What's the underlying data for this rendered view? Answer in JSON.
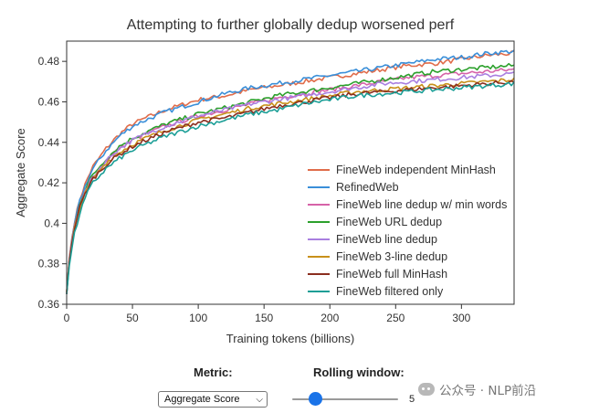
{
  "chart_data": {
    "type": "line",
    "title": "Attempting to further globally dedup worsened perf",
    "xlabel": "Training tokens (billions)",
    "ylabel": "Aggregate Score",
    "xlim": [
      0,
      340
    ],
    "ylim": [
      0.36,
      0.49
    ],
    "xticks": [
      "0",
      "50",
      "100",
      "150",
      "200",
      "250",
      "300"
    ],
    "yticks": [
      "0.36",
      "0.38",
      "0.4",
      "0.42",
      "0.44",
      "0.46",
      "0.48"
    ],
    "grid": false,
    "legend_position": "bottom-right",
    "x": [
      0,
      2,
      5,
      10,
      15,
      20,
      30,
      40,
      50,
      60,
      75,
      90,
      100,
      120,
      140,
      160,
      180,
      200,
      220,
      240,
      260,
      280,
      300,
      320,
      340
    ],
    "series": [
      {
        "name": "FineWeb independent MinHash",
        "color": "#e06c4a",
        "values": [
          0.366,
          0.383,
          0.398,
          0.412,
          0.421,
          0.428,
          0.437,
          0.444,
          0.449,
          0.452,
          0.456,
          0.459,
          0.461,
          0.463,
          0.466,
          0.468,
          0.47,
          0.472,
          0.474,
          0.476,
          0.478,
          0.479,
          0.481,
          0.483,
          0.484
        ]
      },
      {
        "name": "RefinedWeb",
        "color": "#3a8fd9",
        "values": [
          0.365,
          0.382,
          0.397,
          0.411,
          0.42,
          0.427,
          0.436,
          0.443,
          0.448,
          0.451,
          0.455,
          0.458,
          0.46,
          0.464,
          0.467,
          0.469,
          0.471,
          0.473,
          0.475,
          0.477,
          0.479,
          0.481,
          0.482,
          0.484,
          0.485
        ]
      },
      {
        "name": "FineWeb line dedup w/ min words",
        "color": "#d662a8",
        "values": [
          0.366,
          0.382,
          0.396,
          0.409,
          0.417,
          0.423,
          0.431,
          0.437,
          0.441,
          0.444,
          0.448,
          0.451,
          0.453,
          0.456,
          0.459,
          0.462,
          0.464,
          0.466,
          0.468,
          0.47,
          0.472,
          0.473,
          0.474,
          0.475,
          0.476
        ]
      },
      {
        "name": "FineWeb URL dedup",
        "color": "#2ca02c",
        "values": [
          0.366,
          0.382,
          0.396,
          0.41,
          0.418,
          0.424,
          0.432,
          0.438,
          0.442,
          0.445,
          0.449,
          0.452,
          0.454,
          0.457,
          0.46,
          0.463,
          0.465,
          0.467,
          0.469,
          0.471,
          0.473,
          0.475,
          0.476,
          0.477,
          0.478
        ]
      },
      {
        "name": "FineWeb line dedup",
        "color": "#a97fe0",
        "values": [
          0.366,
          0.382,
          0.396,
          0.409,
          0.417,
          0.423,
          0.431,
          0.437,
          0.441,
          0.444,
          0.448,
          0.451,
          0.453,
          0.456,
          0.459,
          0.461,
          0.463,
          0.465,
          0.467,
          0.469,
          0.47,
          0.471,
          0.472,
          0.473,
          0.474
        ]
      },
      {
        "name": "FineWeb 3-line dedup",
        "color": "#c8901a",
        "values": [
          0.366,
          0.381,
          0.395,
          0.408,
          0.416,
          0.422,
          0.43,
          0.435,
          0.439,
          0.442,
          0.446,
          0.449,
          0.451,
          0.454,
          0.457,
          0.459,
          0.461,
          0.463,
          0.465,
          0.466,
          0.467,
          0.468,
          0.469,
          0.47,
          0.471
        ]
      },
      {
        "name": "FineWeb full MinHash",
        "color": "#8b2e1f",
        "values": [
          0.365,
          0.381,
          0.395,
          0.408,
          0.416,
          0.422,
          0.429,
          0.434,
          0.438,
          0.441,
          0.445,
          0.448,
          0.45,
          0.452,
          0.455,
          0.458,
          0.46,
          0.462,
          0.464,
          0.465,
          0.466,
          0.467,
          0.468,
          0.469,
          0.47
        ]
      },
      {
        "name": "FineWeb filtered only",
        "color": "#1a9e96",
        "values": [
          0.365,
          0.379,
          0.392,
          0.405,
          0.414,
          0.42,
          0.427,
          0.432,
          0.436,
          0.439,
          0.443,
          0.446,
          0.448,
          0.451,
          0.454,
          0.456,
          0.459,
          0.461,
          0.463,
          0.464,
          0.465,
          0.466,
          0.467,
          0.468,
          0.469
        ]
      }
    ]
  },
  "controls": {
    "metric_label": "Metric:",
    "metric_selected": "Aggregate Score",
    "window_label": "Rolling window:",
    "window_value": 5
  },
  "watermark": {
    "text": "公众号 · NLP前沿",
    "icon": "wechat-icon"
  }
}
